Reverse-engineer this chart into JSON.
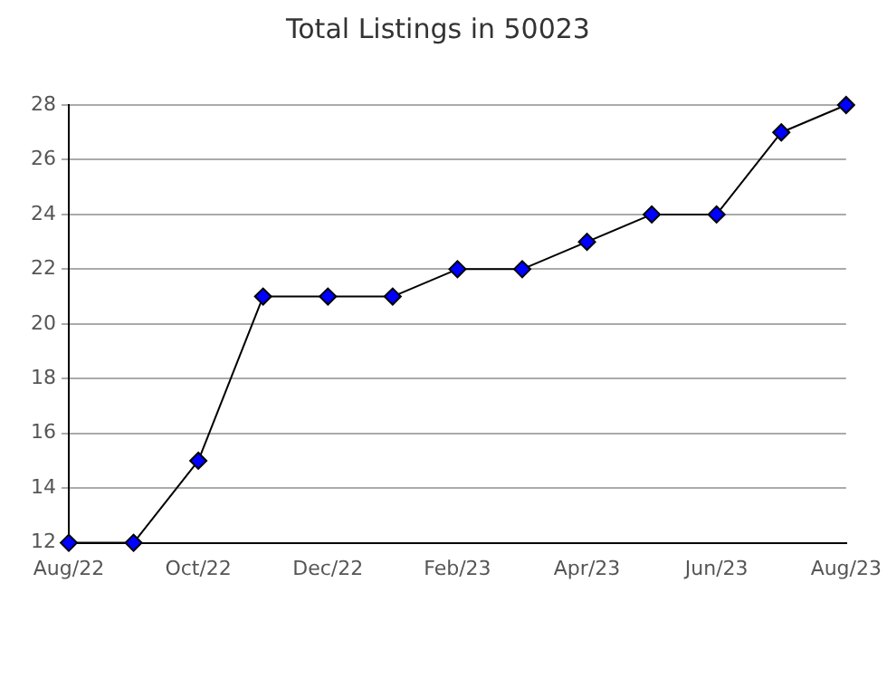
{
  "chart_data": {
    "type": "line",
    "title": "Total Listings in 50023",
    "categories": [
      "Aug/22",
      null,
      "Oct/22",
      null,
      "Dec/22",
      null,
      "Feb/23",
      null,
      "Apr/23",
      null,
      "Jun/23",
      null,
      "Aug/23"
    ],
    "series": [
      {
        "color": "#0000ff",
        "values": [
          12,
          12,
          15,
          21,
          21,
          21,
          22,
          22,
          23,
          24,
          24,
          27,
          28
        ]
      }
    ],
    "ylim": [
      12,
      28
    ],
    "yticks": [
      12,
      14,
      16,
      18,
      20,
      22,
      24,
      26,
      28
    ],
    "grid": "y",
    "legend": false,
    "marker": "diamond",
    "line_style": "solid"
  }
}
